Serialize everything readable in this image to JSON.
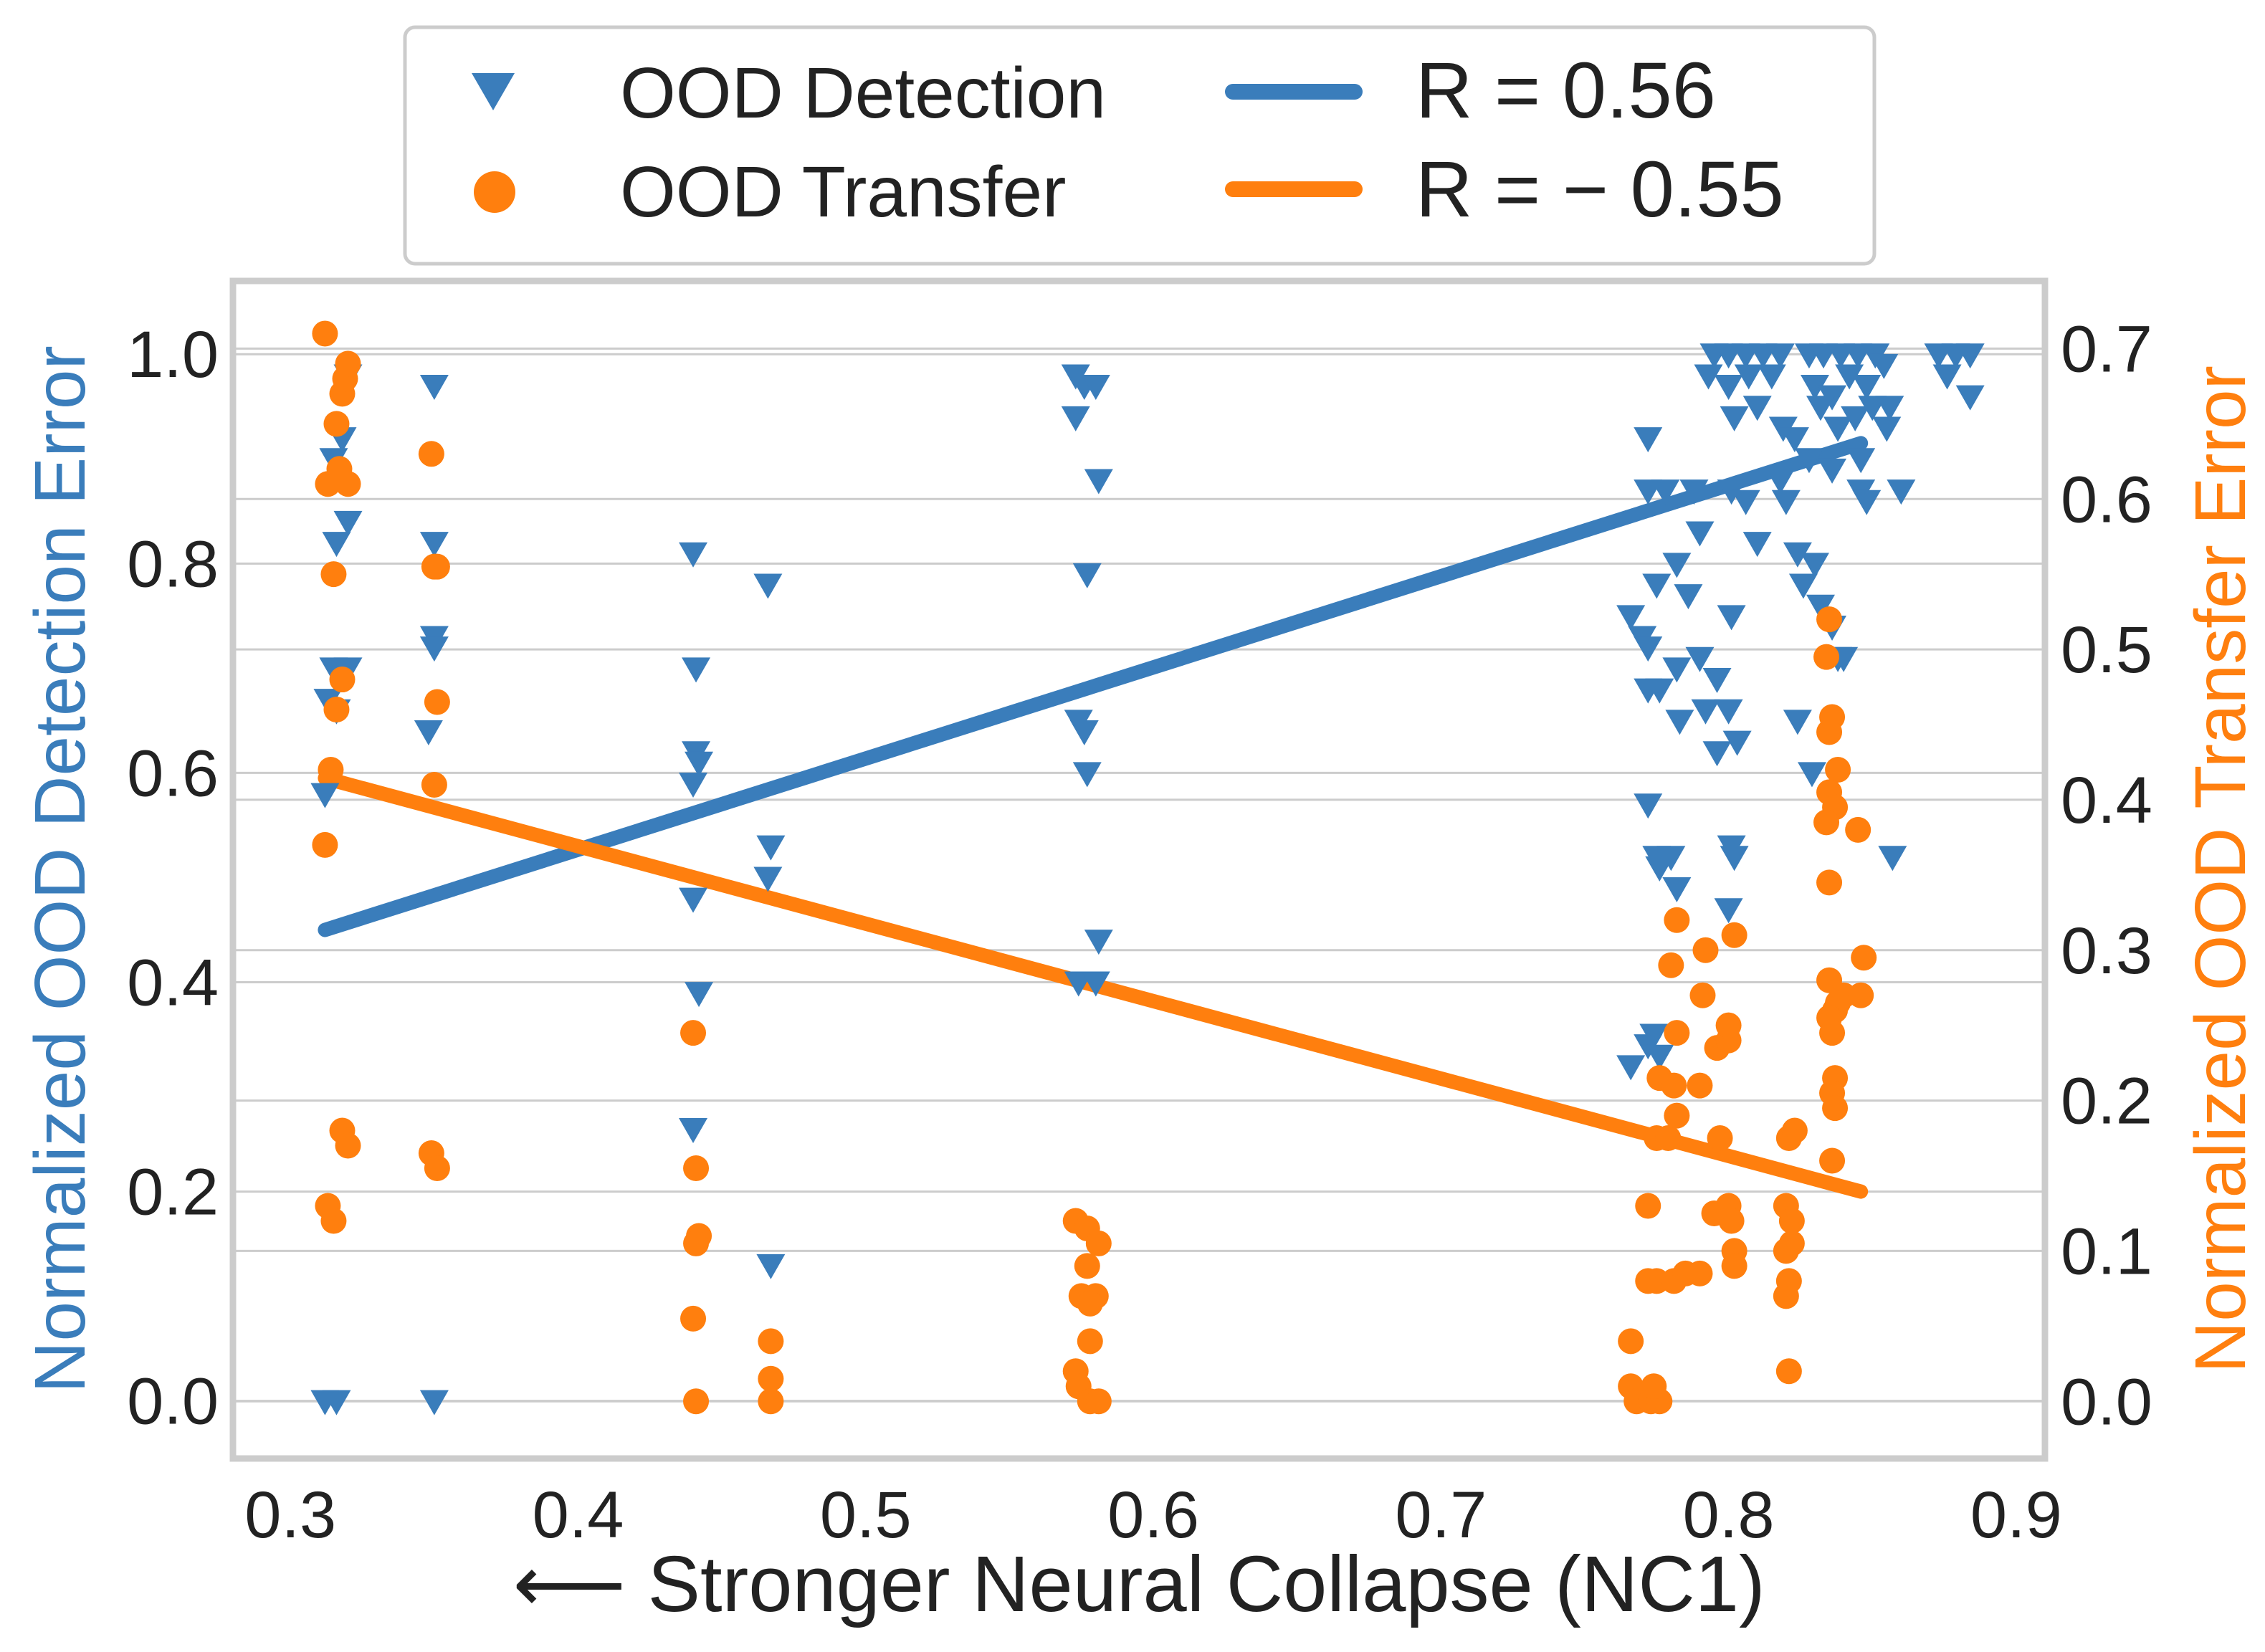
{
  "chart_data": {
    "type": "scatter",
    "xlabel": "⟵ Stronger Neural Collapse (NC1)",
    "ylabel_left": "Normalized OOD Detection Error",
    "ylabel_right": "Normalized OOD Transfer Error",
    "xlim": [
      0.28,
      0.91
    ],
    "ylim_left": [
      -0.055,
      1.07
    ],
    "ylim_right": [
      -0.038,
      0.745
    ],
    "x_ticks": [
      "0.3",
      "0.4",
      "0.5",
      "0.6",
      "0.7",
      "0.8",
      "0.9"
    ],
    "y_ticks_left": [
      "0.0",
      "0.2",
      "0.4",
      "0.6",
      "0.8",
      "1.0"
    ],
    "y_ticks_right": [
      "0.0",
      "0.1",
      "0.2",
      "0.3",
      "0.4",
      "0.5",
      "0.6",
      "0.7"
    ],
    "grid": "horizontal",
    "legend_position": "top-center, outside plot",
    "colors": {
      "detection": "#3a7dbb",
      "transfer": "#ff7f0e",
      "frame": "#cccccc",
      "grid": "#cccccc",
      "text": "#222222"
    },
    "legend": [
      {
        "label": "OOD Detection",
        "marker": "triangle-down",
        "color": "#3a7dbb"
      },
      {
        "label": "OOD Transfer",
        "marker": "circle",
        "color": "#ff7f0e"
      },
      {
        "label": "R = 0.56",
        "marker": "line",
        "color": "#3a7dbb"
      },
      {
        "label": "R = − 0.55",
        "marker": "line",
        "color": "#ff7f0e"
      }
    ],
    "series": [
      {
        "name": "OOD Detection",
        "axis": "left",
        "marker": "triangle-down",
        "points": [
          [
            0.312,
            0.0
          ],
          [
            0.316,
            0.0
          ],
          [
            0.35,
            0.0
          ],
          [
            0.312,
            0.58
          ],
          [
            0.313,
            0.67
          ],
          [
            0.316,
            0.66
          ],
          [
            0.315,
            0.7
          ],
          [
            0.32,
            0.7
          ],
          [
            0.316,
            0.82
          ],
          [
            0.32,
            0.84
          ],
          [
            0.315,
            0.9
          ],
          [
            0.318,
            0.92
          ],
          [
            0.32,
            0.98
          ],
          [
            0.35,
            0.97
          ],
          [
            0.35,
            0.82
          ],
          [
            0.35,
            0.73
          ],
          [
            0.35,
            0.72
          ],
          [
            0.348,
            0.64
          ],
          [
            0.44,
            0.81
          ],
          [
            0.441,
            0.7
          ],
          [
            0.441,
            0.62
          ],
          [
            0.442,
            0.61
          ],
          [
            0.44,
            0.59
          ],
          [
            0.44,
            0.48
          ],
          [
            0.442,
            0.39
          ],
          [
            0.44,
            0.26
          ],
          [
            0.467,
            0.13
          ],
          [
            0.466,
            0.78
          ],
          [
            0.467,
            0.53
          ],
          [
            0.466,
            0.5
          ],
          [
            0.573,
            0.98
          ],
          [
            0.576,
            0.97
          ],
          [
            0.58,
            0.97
          ],
          [
            0.573,
            0.94
          ],
          [
            0.581,
            0.88
          ],
          [
            0.577,
            0.79
          ],
          [
            0.574,
            0.65
          ],
          [
            0.576,
            0.64
          ],
          [
            0.577,
            0.6
          ],
          [
            0.581,
            0.44
          ],
          [
            0.574,
            0.4
          ],
          [
            0.58,
            0.4
          ],
          [
            0.766,
            0.32
          ],
          [
            0.772,
            0.34
          ],
          [
            0.774,
            0.35
          ],
          [
            0.776,
            0.33
          ],
          [
            0.78,
            0.52
          ],
          [
            0.776,
            0.51
          ],
          [
            0.772,
            0.57
          ],
          [
            0.775,
            0.52
          ],
          [
            0.782,
            0.49
          ],
          [
            0.801,
            0.53
          ],
          [
            0.802,
            0.52
          ],
          [
            0.8,
            0.47
          ],
          [
            0.766,
            0.75
          ],
          [
            0.77,
            0.73
          ],
          [
            0.772,
            0.68
          ],
          [
            0.776,
            0.68
          ],
          [
            0.783,
            0.65
          ],
          [
            0.792,
            0.66
          ],
          [
            0.796,
            0.62
          ],
          [
            0.803,
            0.63
          ],
          [
            0.8,
            0.66
          ],
          [
            0.79,
            0.71
          ],
          [
            0.796,
            0.69
          ],
          [
            0.772,
            0.72
          ],
          [
            0.782,
            0.7
          ],
          [
            0.786,
            0.77
          ],
          [
            0.775,
            0.78
          ],
          [
            0.782,
            0.8
          ],
          [
            0.772,
            0.87
          ],
          [
            0.778,
            0.87
          ],
          [
            0.788,
            0.87
          ],
          [
            0.801,
            0.75
          ],
          [
            0.801,
            0.87
          ],
          [
            0.806,
            0.86
          ],
          [
            0.79,
            0.83
          ],
          [
            0.772,
            0.92
          ],
          [
            0.81,
            0.82
          ],
          [
            0.818,
            0.88
          ],
          [
            0.82,
            0.86
          ],
          [
            0.824,
            0.81
          ],
          [
            0.826,
            0.78
          ],
          [
            0.83,
            0.8
          ],
          [
            0.832,
            0.76
          ],
          [
            0.836,
            0.74
          ],
          [
            0.838,
            0.71
          ],
          [
            0.84,
            0.71
          ],
          [
            0.824,
            0.65
          ],
          [
            0.829,
            0.6
          ],
          [
            0.846,
            0.87
          ],
          [
            0.848,
            0.86
          ],
          [
            0.855,
            0.93
          ],
          [
            0.856,
            0.95
          ],
          [
            0.86,
            0.87
          ],
          [
            0.857,
            0.52
          ],
          [
            0.795,
            1.0
          ],
          [
            0.8,
            1.0
          ],
          [
            0.806,
            1.0
          ],
          [
            0.812,
            1.0
          ],
          [
            0.818,
            1.0
          ],
          [
            0.793,
            0.98
          ],
          [
            0.8,
            0.97
          ],
          [
            0.807,
            0.98
          ],
          [
            0.815,
            0.98
          ],
          [
            0.802,
            0.94
          ],
          [
            0.81,
            0.95
          ],
          [
            0.819,
            0.93
          ],
          [
            0.823,
            0.92
          ],
          [
            0.828,
            1.0
          ],
          [
            0.833,
            1.0
          ],
          [
            0.839,
            1.0
          ],
          [
            0.845,
            1.0
          ],
          [
            0.851,
            1.0
          ],
          [
            0.83,
            0.97
          ],
          [
            0.836,
            0.96
          ],
          [
            0.842,
            0.98
          ],
          [
            0.848,
            0.97
          ],
          [
            0.854,
            0.99
          ],
          [
            0.832,
            0.95
          ],
          [
            0.838,
            0.93
          ],
          [
            0.844,
            0.94
          ],
          [
            0.85,
            0.95
          ],
          [
            0.846,
            0.9
          ],
          [
            0.836,
            0.89
          ],
          [
            0.828,
            0.9
          ],
          [
            0.873,
            1.0
          ],
          [
            0.879,
            1.0
          ],
          [
            0.884,
            1.0
          ],
          [
            0.876,
            0.98
          ],
          [
            0.884,
            0.96
          ]
        ]
      },
      {
        "name": "OOD Transfer",
        "axis": "right",
        "marker": "circle",
        "points": [
          [
            0.312,
            0.71
          ],
          [
            0.316,
            0.65
          ],
          [
            0.318,
            0.67
          ],
          [
            0.319,
            0.68
          ],
          [
            0.32,
            0.69
          ],
          [
            0.317,
            0.62
          ],
          [
            0.313,
            0.61
          ],
          [
            0.32,
            0.61
          ],
          [
            0.315,
            0.55
          ],
          [
            0.318,
            0.48
          ],
          [
            0.316,
            0.46
          ],
          [
            0.314,
            0.42
          ],
          [
            0.312,
            0.37
          ],
          [
            0.318,
            0.18
          ],
          [
            0.32,
            0.17
          ],
          [
            0.313,
            0.13
          ],
          [
            0.315,
            0.12
          ],
          [
            0.349,
            0.63
          ],
          [
            0.35,
            0.555
          ],
          [
            0.351,
            0.555
          ],
          [
            0.351,
            0.465
          ],
          [
            0.35,
            0.41
          ],
          [
            0.349,
            0.165
          ],
          [
            0.351,
            0.155
          ],
          [
            0.44,
            0.245
          ],
          [
            0.441,
            0.155
          ],
          [
            0.442,
            0.11
          ],
          [
            0.441,
            0.105
          ],
          [
            0.44,
            0.055
          ],
          [
            0.441,
            0.0
          ],
          [
            0.467,
            0.04
          ],
          [
            0.467,
            0.015
          ],
          [
            0.467,
            0.0
          ],
          [
            0.573,
            0.12
          ],
          [
            0.577,
            0.115
          ],
          [
            0.581,
            0.105
          ],
          [
            0.577,
            0.09
          ],
          [
            0.575,
            0.07
          ],
          [
            0.58,
            0.07
          ],
          [
            0.578,
            0.065
          ],
          [
            0.578,
            0.04
          ],
          [
            0.573,
            0.02
          ],
          [
            0.574,
            0.01
          ],
          [
            0.578,
            0.0
          ],
          [
            0.581,
            0.0
          ],
          [
            0.766,
            0.04
          ],
          [
            0.766,
            0.01
          ],
          [
            0.768,
            0.0
          ],
          [
            0.773,
            0.0
          ],
          [
            0.776,
            0.0
          ],
          [
            0.774,
            0.01
          ],
          [
            0.772,
            0.08
          ],
          [
            0.775,
            0.08
          ],
          [
            0.781,
            0.08
          ],
          [
            0.772,
            0.13
          ],
          [
            0.785,
            0.085
          ],
          [
            0.79,
            0.085
          ],
          [
            0.775,
            0.175
          ],
          [
            0.779,
            0.175
          ],
          [
            0.782,
            0.19
          ],
          [
            0.776,
            0.215
          ],
          [
            0.781,
            0.21
          ],
          [
            0.79,
            0.21
          ],
          [
            0.796,
            0.235
          ],
          [
            0.8,
            0.24
          ],
          [
            0.8,
            0.25
          ],
          [
            0.782,
            0.245
          ],
          [
            0.78,
            0.29
          ],
          [
            0.782,
            0.32
          ],
          [
            0.791,
            0.27
          ],
          [
            0.792,
            0.3
          ],
          [
            0.802,
            0.31
          ],
          [
            0.797,
            0.175
          ],
          [
            0.8,
            0.13
          ],
          [
            0.801,
            0.12
          ],
          [
            0.802,
            0.1
          ],
          [
            0.802,
            0.09
          ],
          [
            0.795,
            0.125
          ],
          [
            0.821,
            0.175
          ],
          [
            0.823,
            0.18
          ],
          [
            0.82,
            0.13
          ],
          [
            0.822,
            0.12
          ],
          [
            0.822,
            0.105
          ],
          [
            0.82,
            0.1
          ],
          [
            0.821,
            0.08
          ],
          [
            0.82,
            0.07
          ],
          [
            0.821,
            0.02
          ],
          [
            0.835,
            0.52
          ],
          [
            0.834,
            0.495
          ],
          [
            0.836,
            0.455
          ],
          [
            0.835,
            0.445
          ],
          [
            0.838,
            0.42
          ],
          [
            0.835,
            0.405
          ],
          [
            0.837,
            0.395
          ],
          [
            0.834,
            0.385
          ],
          [
            0.835,
            0.345
          ],
          [
            0.845,
            0.38
          ],
          [
            0.847,
            0.295
          ],
          [
            0.835,
            0.28
          ],
          [
            0.838,
            0.265
          ],
          [
            0.837,
            0.26
          ],
          [
            0.835,
            0.255
          ],
          [
            0.836,
            0.245
          ],
          [
            0.84,
            0.27
          ],
          [
            0.846,
            0.27
          ],
          [
            0.837,
            0.215
          ],
          [
            0.836,
            0.205
          ],
          [
            0.837,
            0.195
          ],
          [
            0.836,
            0.16
          ]
        ]
      }
    ],
    "fit_lines": [
      {
        "name": "R = 0.56",
        "axis": "left",
        "x": [
          0.312,
          0.846
        ],
        "y": [
          0.45,
          0.915
        ]
      },
      {
        "name": "R = − 0.55",
        "axis": "left",
        "x": [
          0.312,
          0.846
        ],
        "y": [
          0.595,
          0.2
        ]
      }
    ]
  }
}
